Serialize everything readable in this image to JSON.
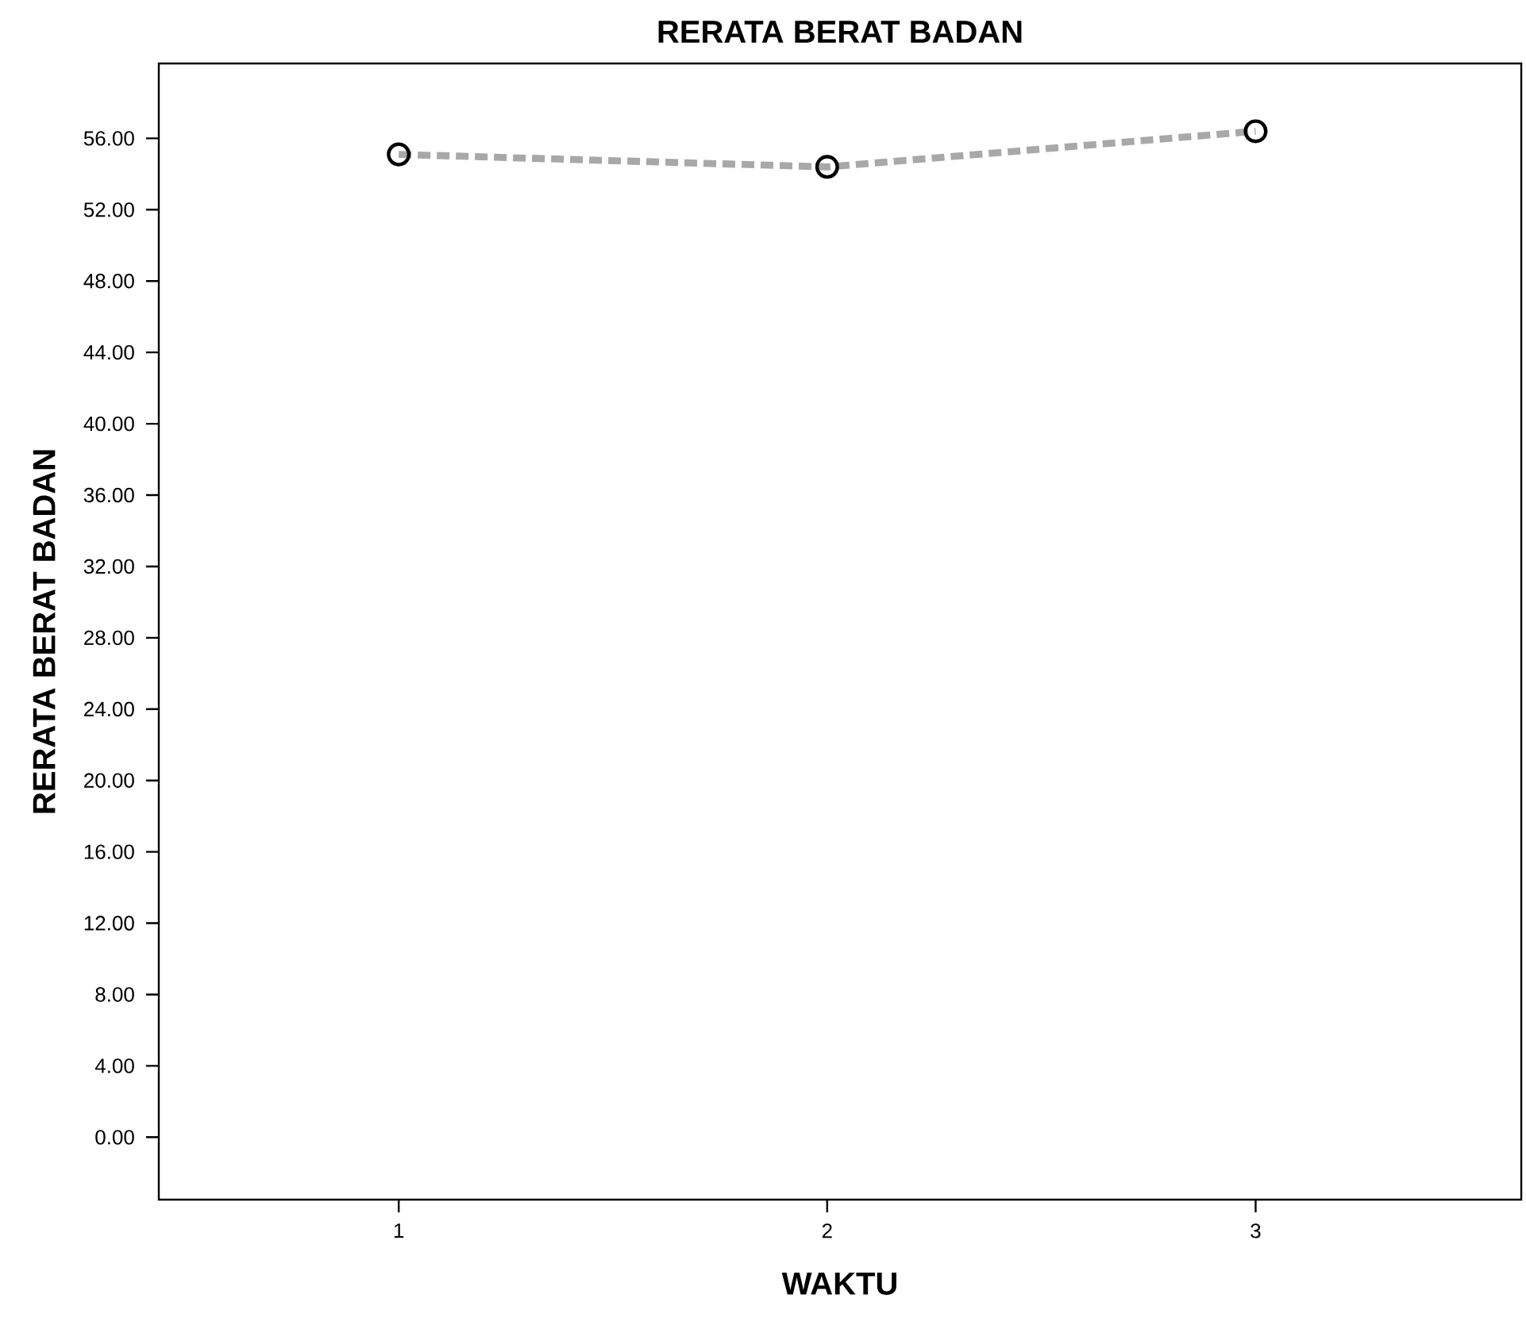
{
  "chart_data": {
    "type": "line",
    "title": "RERATA BERAT BADAN",
    "xlabel": "WAKTU",
    "ylabel": "RERATA BERAT BADAN",
    "x": [
      1,
      2,
      3
    ],
    "series": [
      {
        "color": "#a8a8a8",
        "values": [
          55.1,
          54.4,
          56.4
        ]
      }
    ],
    "xlim": [
      0.44,
      3.62
    ],
    "xticks": [
      1,
      2,
      3
    ],
    "ylim": [
      -3.5,
      60.2
    ],
    "yticks": [
      {
        "value": 0,
        "label": "0.00"
      },
      {
        "value": 4,
        "label": "4.00"
      },
      {
        "value": 8,
        "label": "8.00"
      },
      {
        "value": 12,
        "label": "12.00"
      },
      {
        "value": 16,
        "label": "16.00"
      },
      {
        "value": 20,
        "label": "20.00"
      },
      {
        "value": 24,
        "label": "24.00"
      },
      {
        "value": 28,
        "label": "28.00"
      },
      {
        "value": 32,
        "label": "32.00"
      },
      {
        "value": 36,
        "label": "36.00"
      },
      {
        "value": 40,
        "label": "40.00"
      },
      {
        "value": 44,
        "label": "44.00"
      },
      {
        "value": 48,
        "label": "48.00"
      },
      {
        "value": 52,
        "label": "52.00"
      },
      {
        "value": 56,
        "label": "56.00"
      }
    ],
    "grid": false,
    "marker": "circle",
    "line_style": "dashed"
  }
}
